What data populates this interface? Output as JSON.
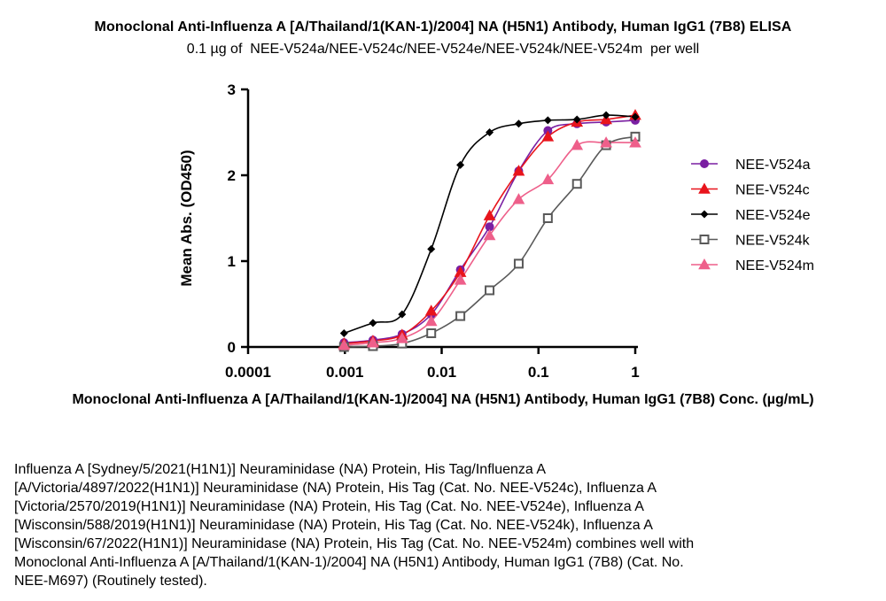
{
  "chart_data": {
    "type": "line",
    "title": "Monoclonal Anti-Influenza A [A/Thailand/1(KAN-1)/2004] NA (H5N1) Antibody, Human IgG1 (7B8) ELISA",
    "subtitle": "0.1 µg of  NEE-V524a/NEE-V524c/NEE-V524e/NEE-V524k/NEE-V524m  per well",
    "xlabel": "Monoclonal Anti-Influenza A [A/Thailand/1(KAN-1)/2004] NA (H5N1) Antibody, Human IgG1 (7B8) Conc. (µg/mL)",
    "ylabel": "Mean Abs. (OD450)",
    "x_scale": "log",
    "xlim": [
      0.0001,
      1
    ],
    "ylim": [
      0,
      3
    ],
    "x_ticks": [
      0.0001,
      0.001,
      0.01,
      0.1,
      1
    ],
    "x_tick_labels": [
      "0.0001",
      "0.001",
      "0.01",
      "0.1",
      "1"
    ],
    "y_ticks": [
      0,
      1,
      2,
      3
    ],
    "y_tick_labels": [
      "0",
      "1",
      "2",
      "3"
    ],
    "grid": false,
    "legend_position": "right",
    "series": [
      {
        "name": "NEE-V524a",
        "color": "#7a1fa2",
        "marker": "circle",
        "x": [
          0.00098,
          0.00195,
          0.0039,
          0.0078,
          0.0156,
          0.03125,
          0.0625,
          0.125,
          0.25,
          0.5,
          1
        ],
        "y": [
          0.05,
          0.08,
          0.15,
          0.38,
          0.9,
          1.4,
          2.05,
          2.52,
          2.6,
          2.62,
          2.64
        ]
      },
      {
        "name": "NEE-V524c",
        "color": "#e8141c",
        "marker": "triangle",
        "x": [
          0.00098,
          0.00195,
          0.0039,
          0.0078,
          0.0156,
          0.03125,
          0.0625,
          0.125,
          0.25,
          0.5,
          1
        ],
        "y": [
          0.04,
          0.07,
          0.14,
          0.42,
          0.87,
          1.53,
          2.05,
          2.45,
          2.62,
          2.65,
          2.7
        ]
      },
      {
        "name": "NEE-V524e",
        "color": "#000000",
        "marker": "diamond",
        "x": [
          0.00098,
          0.00195,
          0.0039,
          0.0078,
          0.0156,
          0.03125,
          0.0625,
          0.125,
          0.25,
          0.5,
          1
        ],
        "y": [
          0.16,
          0.28,
          0.38,
          1.14,
          2.12,
          2.5,
          2.6,
          2.64,
          2.65,
          2.7,
          2.68
        ]
      },
      {
        "name": "NEE-V524k",
        "color": "#595959",
        "marker": "square-open",
        "x": [
          0.00098,
          0.00195,
          0.0039,
          0.0078,
          0.0156,
          0.03125,
          0.0625,
          0.125,
          0.25,
          0.5,
          1
        ],
        "y": [
          0.0,
          0.01,
          0.04,
          0.16,
          0.36,
          0.66,
          0.97,
          1.5,
          1.9,
          2.35,
          2.45
        ]
      },
      {
        "name": "NEE-V524m",
        "color": "#ee5f8a",
        "marker": "triangle",
        "x": [
          0.00098,
          0.00195,
          0.0039,
          0.0078,
          0.0156,
          0.03125,
          0.0625,
          0.125,
          0.25,
          0.5,
          1
        ],
        "y": [
          0.02,
          0.05,
          0.1,
          0.3,
          0.78,
          1.3,
          1.72,
          1.95,
          2.35,
          2.38,
          2.38
        ]
      }
    ]
  },
  "description": [
    "Influenza A [Sydney/5/2021(H1N1)] Neuraminidase (NA) Protein, His Tag/Influenza A",
    "[A/Victoria/4897/2022(H1N1)] Neuraminidase (NA) Protein, His Tag (Cat. No. NEE-V524c), Influenza A",
    "[Victoria/2570/2019(H1N1)] Neuraminidase (NA) Protein, His Tag (Cat. No. NEE-V524e), Influenza A",
    "[Wisconsin/588/2019(H1N1)] Neuraminidase (NA) Protein, His Tag (Cat. No. NEE-V524k), Influenza A",
    "[Wisconsin/67/2022(H1N1)] Neuraminidase (NA) Protein, His Tag (Cat. No. NEE-V524m) combines well with",
    "Monoclonal Anti-Influenza A [A/Thailand/1(KAN-1)/2004] NA (H5N1) Antibody, Human IgG1 (7B8) (Cat. No.",
    "NEE-M697) (Routinely tested)."
  ]
}
